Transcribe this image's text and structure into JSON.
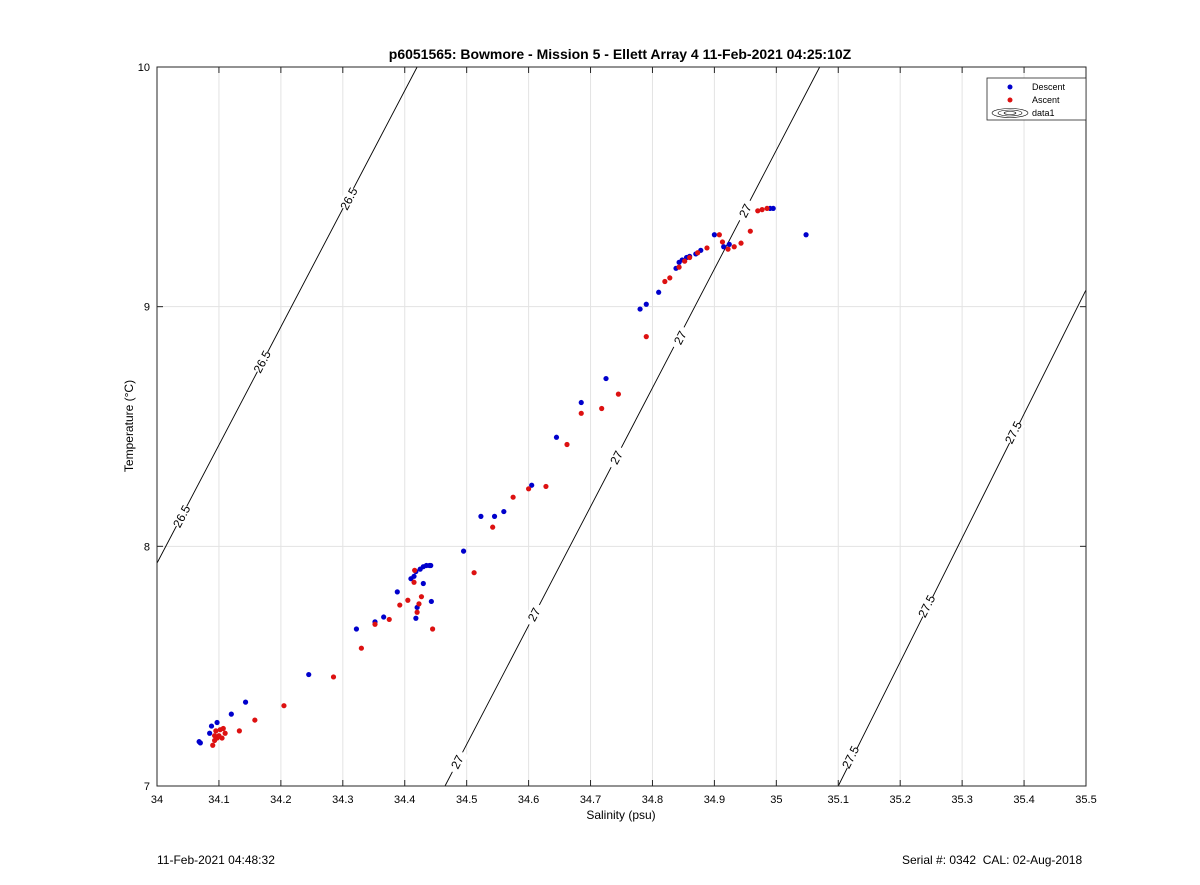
{
  "chart_data": {
    "type": "scatter",
    "title": "p6051565: Bowmore - Mission 5 - Ellett Array 4 11-Feb-2021 04:25:10Z",
    "xlabel": "Salinity (psu)",
    "ylabel": "Temperature (°C)",
    "xlim": [
      34,
      35.5
    ],
    "ylim": [
      7,
      10
    ],
    "xticks": [
      "34",
      "34.1",
      "34.2",
      "34.3",
      "34.4",
      "34.5",
      "34.6",
      "34.7",
      "34.8",
      "34.9",
      "35",
      "35.1",
      "35.2",
      "35.3",
      "35.4",
      "35.5"
    ],
    "yticks": [
      "7",
      "8",
      "9",
      "10"
    ],
    "grid": true,
    "legend_position": "top-right",
    "legend": [
      "Descent",
      "Ascent",
      "data1"
    ],
    "series": [
      {
        "name": "Descent",
        "color": "#0000cc",
        "points": [
          [
            34.07,
            7.18
          ],
          [
            34.068,
            7.185
          ],
          [
            34.085,
            7.22
          ],
          [
            34.088,
            7.25
          ],
          [
            34.097,
            7.265
          ],
          [
            34.12,
            7.3
          ],
          [
            34.143,
            7.35
          ],
          [
            34.245,
            7.465
          ],
          [
            34.322,
            7.655
          ],
          [
            34.352,
            7.685
          ],
          [
            34.366,
            7.705
          ],
          [
            34.388,
            7.81
          ],
          [
            34.41,
            7.865
          ],
          [
            34.415,
            7.875
          ],
          [
            34.418,
            7.895
          ],
          [
            34.425,
            7.905
          ],
          [
            34.43,
            7.915
          ],
          [
            34.435,
            7.92
          ],
          [
            34.44,
            7.92
          ],
          [
            34.442,
            7.92
          ],
          [
            34.43,
            7.845
          ],
          [
            34.42,
            7.745
          ],
          [
            34.418,
            7.7
          ],
          [
            34.443,
            7.77
          ],
          [
            34.495,
            7.98
          ],
          [
            34.523,
            8.125
          ],
          [
            34.545,
            8.125
          ],
          [
            34.56,
            8.145
          ],
          [
            34.605,
            8.255
          ],
          [
            34.645,
            8.455
          ],
          [
            34.685,
            8.6
          ],
          [
            34.725,
            8.7
          ],
          [
            34.78,
            8.99
          ],
          [
            34.79,
            9.01
          ],
          [
            34.81,
            9.06
          ],
          [
            34.838,
            9.16
          ],
          [
            34.843,
            9.185
          ],
          [
            34.848,
            9.195
          ],
          [
            34.855,
            9.205
          ],
          [
            34.86,
            9.21
          ],
          [
            34.87,
            9.22
          ],
          [
            34.878,
            9.235
          ],
          [
            34.9,
            9.3
          ],
          [
            34.915,
            9.25
          ],
          [
            34.924,
            9.26
          ],
          [
            34.99,
            9.41
          ],
          [
            34.995,
            9.41
          ],
          [
            35.048,
            9.3
          ]
        ]
      },
      {
        "name": "Ascent",
        "color": "#dd1111",
        "points": [
          [
            34.09,
            7.17
          ],
          [
            34.093,
            7.19
          ],
          [
            34.097,
            7.2
          ],
          [
            34.1,
            7.21
          ],
          [
            34.095,
            7.23
          ],
          [
            34.102,
            7.235
          ],
          [
            34.107,
            7.24
          ],
          [
            34.11,
            7.22
          ],
          [
            34.105,
            7.2
          ],
          [
            34.093,
            7.21
          ],
          [
            34.133,
            7.23
          ],
          [
            34.158,
            7.275
          ],
          [
            34.205,
            7.335
          ],
          [
            34.285,
            7.455
          ],
          [
            34.33,
            7.575
          ],
          [
            34.352,
            7.675
          ],
          [
            34.375,
            7.695
          ],
          [
            34.392,
            7.755
          ],
          [
            34.405,
            7.775
          ],
          [
            34.415,
            7.85
          ],
          [
            34.416,
            7.9
          ],
          [
            34.42,
            7.725
          ],
          [
            34.423,
            7.76
          ],
          [
            34.427,
            7.79
          ],
          [
            34.445,
            7.655
          ],
          [
            34.512,
            7.89
          ],
          [
            34.542,
            8.08
          ],
          [
            34.575,
            8.205
          ],
          [
            34.6,
            8.24
          ],
          [
            34.628,
            8.25
          ],
          [
            34.662,
            8.425
          ],
          [
            34.685,
            8.555
          ],
          [
            34.718,
            8.575
          ],
          [
            34.745,
            8.635
          ],
          [
            34.79,
            8.875
          ],
          [
            34.82,
            9.105
          ],
          [
            34.828,
            9.12
          ],
          [
            34.843,
            9.165
          ],
          [
            34.852,
            9.19
          ],
          [
            34.86,
            9.205
          ],
          [
            34.873,
            9.225
          ],
          [
            34.888,
            9.245
          ],
          [
            34.908,
            9.3
          ],
          [
            34.913,
            9.27
          ],
          [
            34.922,
            9.24
          ],
          [
            34.932,
            9.25
          ],
          [
            34.943,
            9.265
          ],
          [
            34.958,
            9.315
          ],
          [
            34.97,
            9.4
          ],
          [
            34.977,
            9.405
          ],
          [
            34.985,
            9.41
          ]
        ]
      }
    ],
    "contours": [
      {
        "label": "26.5",
        "start": [
          34.0,
          7.93
        ],
        "end": [
          34.42,
          10.0
        ],
        "labels_at": [
          [
            34.04,
            8.125
          ],
          [
            34.17,
            8.77
          ],
          [
            34.31,
            9.45
          ]
        ]
      },
      {
        "label": "27",
        "start": [
          34.465,
          7.0
        ],
        "end": [
          35.07,
          10.0
        ],
        "labels_at": [
          [
            34.485,
            7.1
          ],
          [
            34.609,
            7.715
          ],
          [
            34.742,
            8.37
          ],
          [
            34.845,
            8.87
          ],
          [
            34.95,
            9.4
          ]
        ]
      },
      {
        "label": "27.5",
        "start": [
          35.1,
          7.0
        ],
        "end": [
          35.5,
          9.07
        ],
        "labels_at": [
          [
            35.12,
            7.12
          ],
          [
            35.243,
            7.75
          ],
          [
            35.383,
            8.475
          ]
        ]
      }
    ]
  },
  "footer": {
    "timestamp": "11-Feb-2021 04:48:32",
    "serial": "Serial #: 0342  CAL: 02-Aug-2018"
  }
}
